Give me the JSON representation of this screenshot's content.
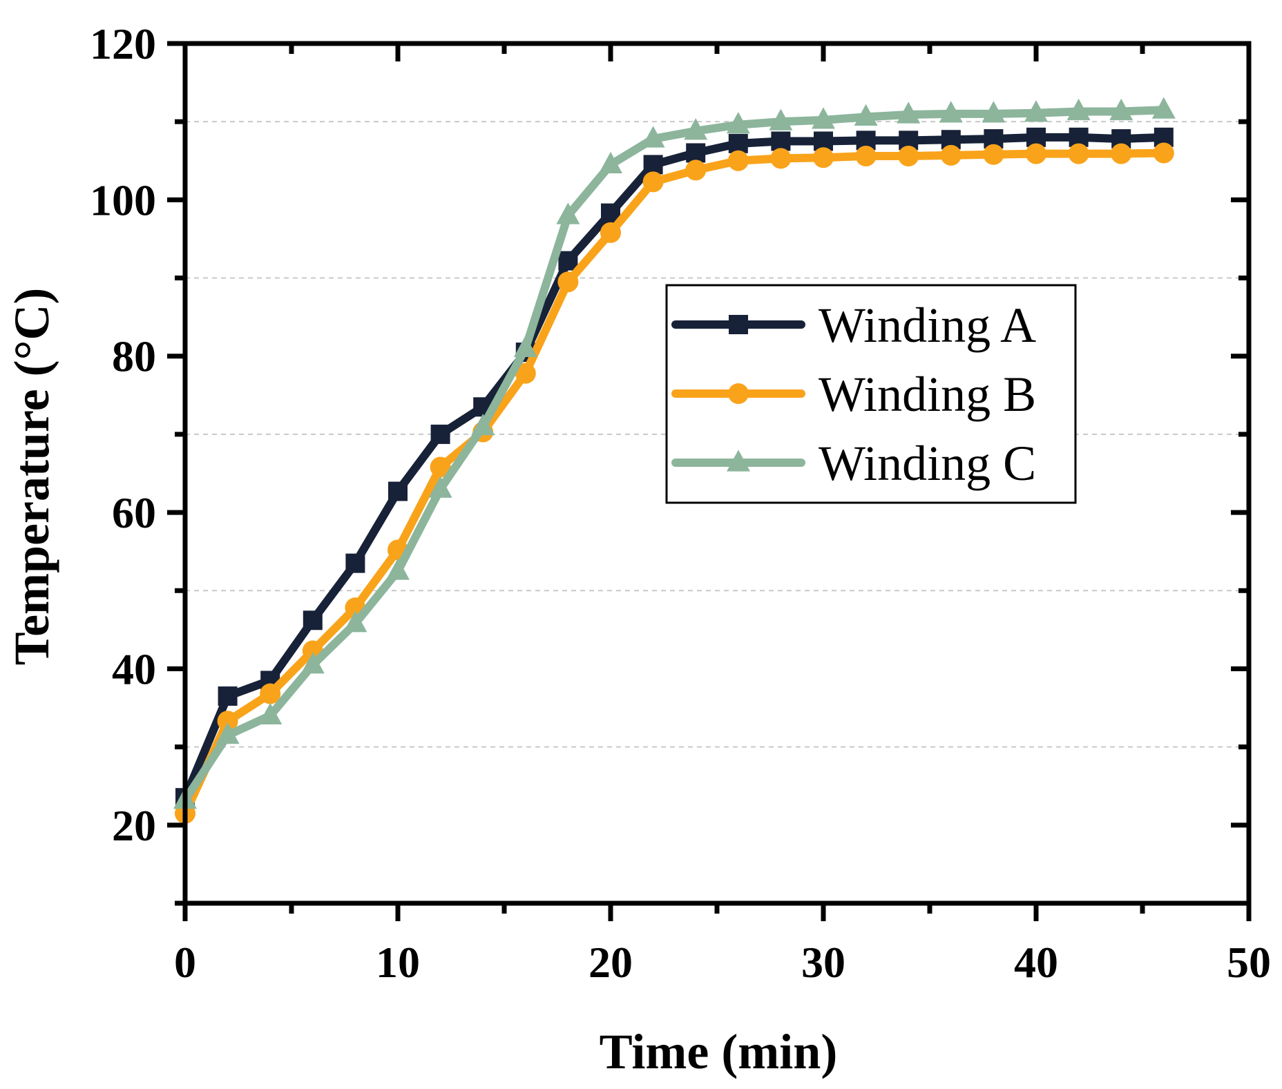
{
  "chart_data": {
    "type": "line",
    "title": "",
    "xlabel": "Time (min)",
    "ylabel": "Temperature (°C)",
    "xlim": [
      0,
      50
    ],
    "ylim": [
      10,
      120
    ],
    "x_ticks": [
      0,
      10,
      20,
      30,
      40,
      50
    ],
    "y_ticks": [
      20,
      40,
      60,
      80,
      100,
      120
    ],
    "grid_lines_y": [
      30,
      50,
      70,
      90,
      110
    ],
    "legend_position": "center-right",
    "x": [
      0,
      2,
      4,
      6,
      8,
      10,
      12,
      14,
      16,
      18,
      20,
      22,
      24,
      26,
      28,
      30,
      32,
      34,
      36,
      38,
      40,
      42,
      44,
      46
    ],
    "series": [
      {
        "name": "Winding A",
        "color": "#172238",
        "marker": "square",
        "values": [
          23.5,
          36.5,
          38.5,
          46.2,
          53.5,
          62.7,
          70.0,
          73.5,
          80.5,
          92.2,
          98.3,
          104.5,
          106.0,
          107.2,
          107.5,
          107.5,
          107.6,
          107.6,
          107.7,
          107.8,
          108.0,
          108.0,
          107.8,
          108.0
        ]
      },
      {
        "name": "Winding B",
        "color": "#f9a31b",
        "marker": "circle",
        "values": [
          21.5,
          33.3,
          36.8,
          42.3,
          47.8,
          55.2,
          65.8,
          70.3,
          77.8,
          89.5,
          95.8,
          102.3,
          103.8,
          105.0,
          105.3,
          105.4,
          105.6,
          105.6,
          105.7,
          105.8,
          105.9,
          105.9,
          105.9,
          106.0
        ]
      },
      {
        "name": "Winding C",
        "color": "#8cb59c",
        "marker": "triangle",
        "values": [
          23.2,
          31.5,
          34.0,
          40.5,
          45.8,
          52.5,
          63.0,
          71.0,
          81.0,
          98.0,
          104.5,
          107.8,
          108.8,
          109.6,
          110.0,
          110.2,
          110.6,
          110.9,
          111.0,
          111.0,
          111.1,
          111.3,
          111.3,
          111.5
        ]
      }
    ]
  }
}
